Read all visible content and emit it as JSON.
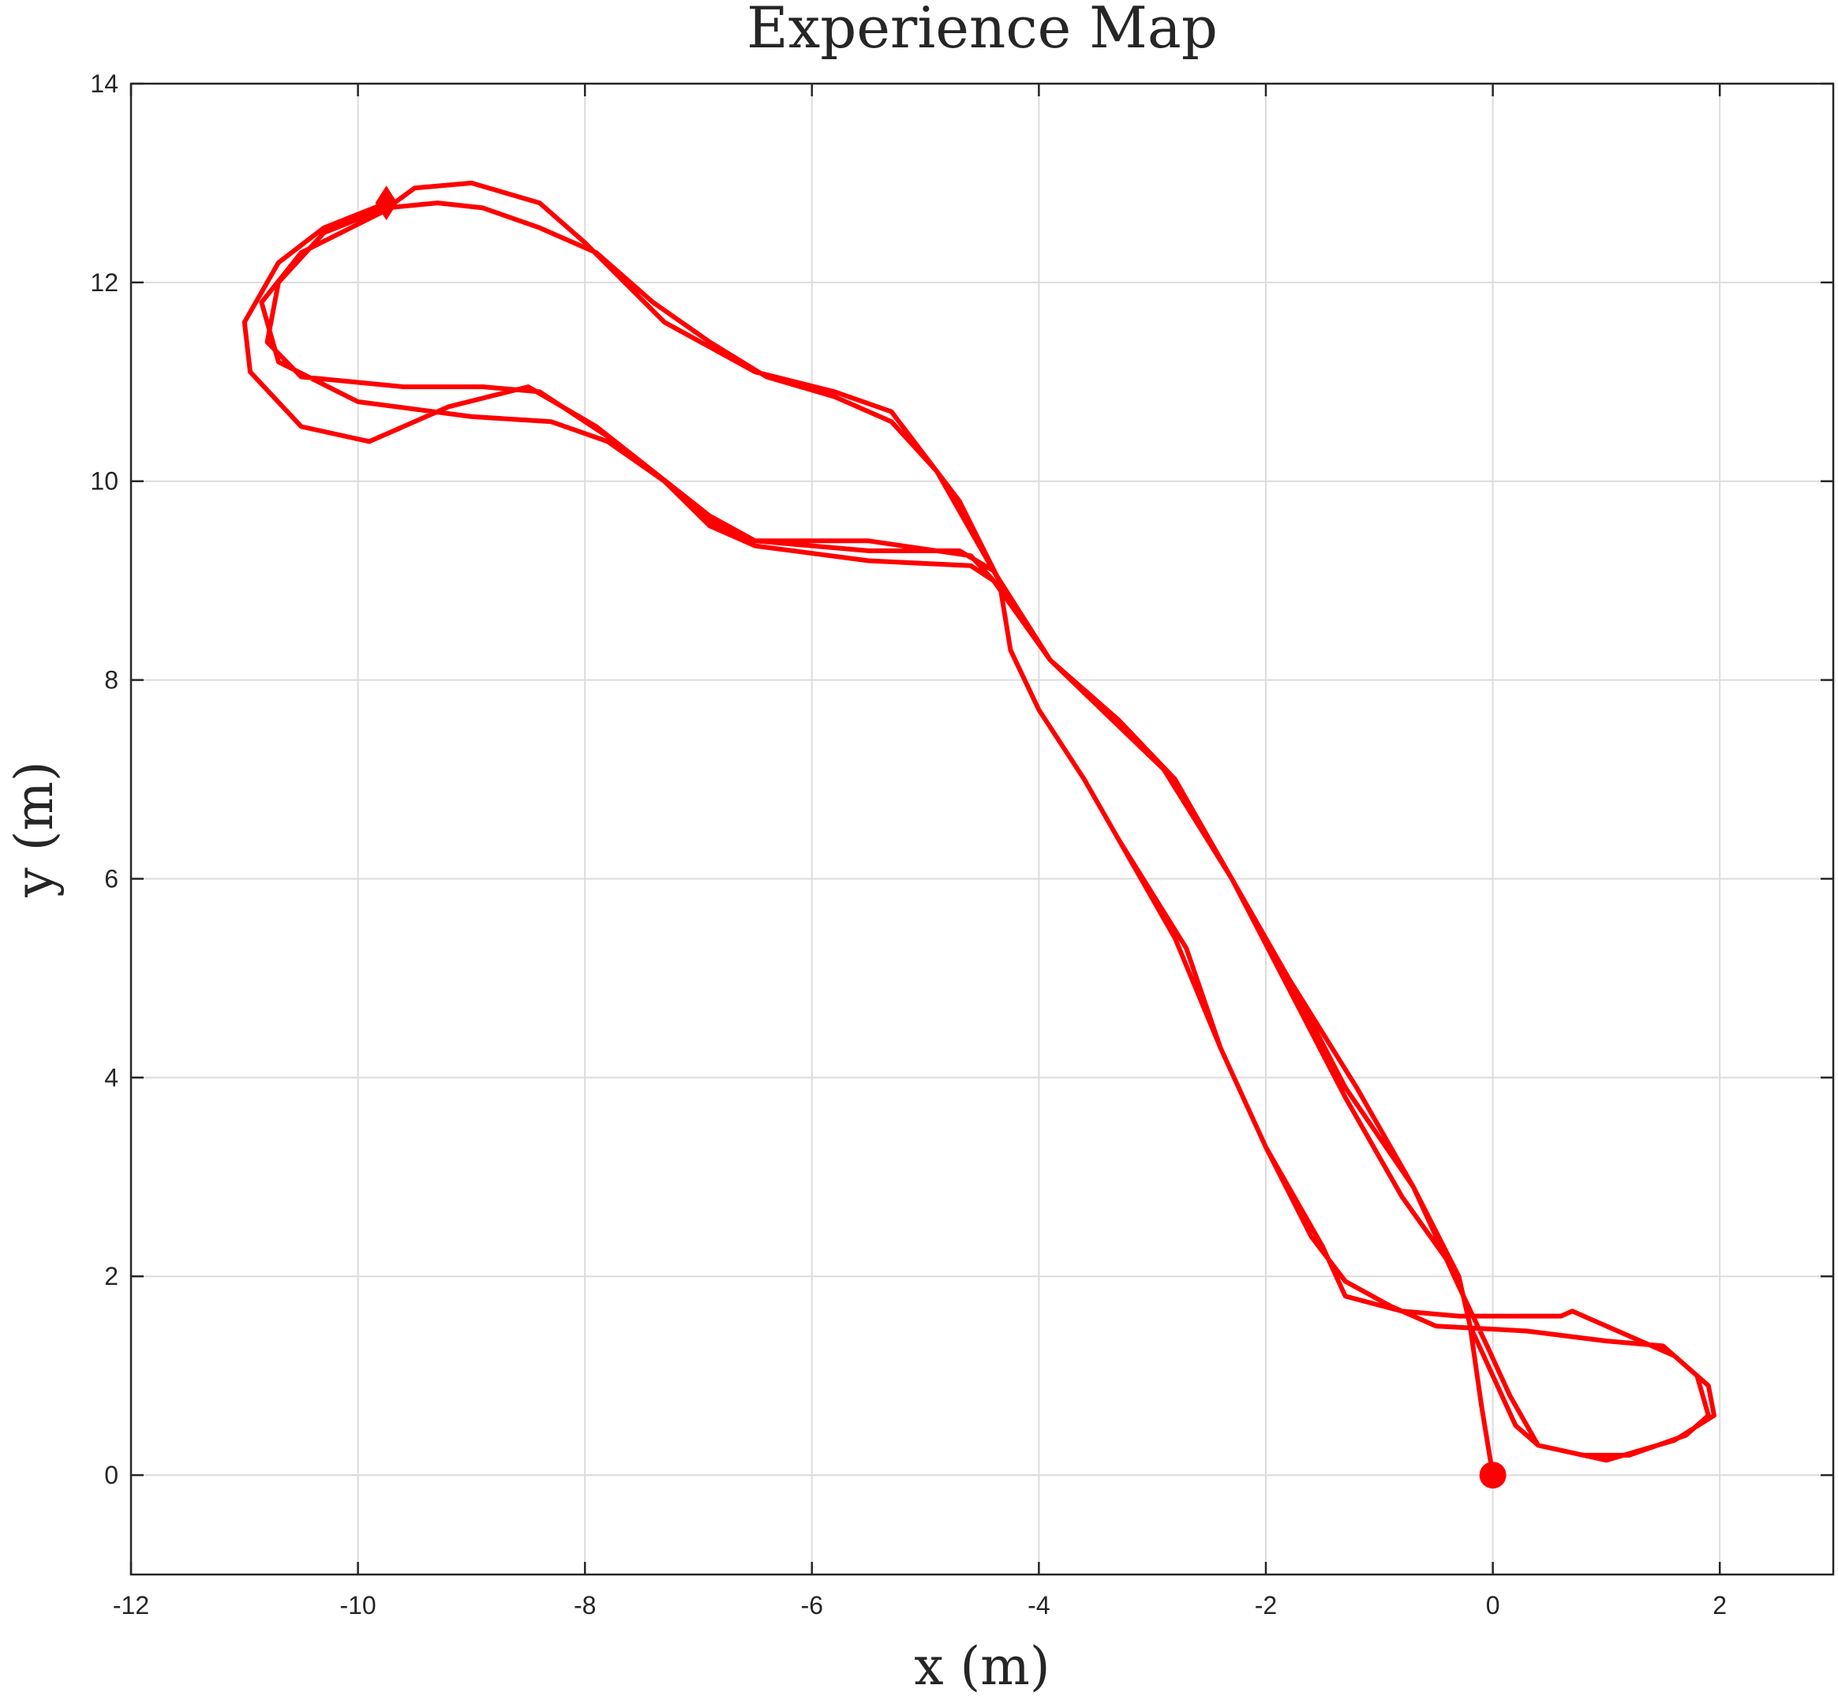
{
  "chart_data": {
    "type": "line",
    "title": "Experience Map",
    "xlabel": "x (m)",
    "ylabel": "y (m)",
    "xlim": [
      -12,
      3
    ],
    "ylim": [
      -1,
      14
    ],
    "xticks": [
      -12,
      -10,
      -8,
      -6,
      -4,
      -2,
      0,
      2
    ],
    "yticks": [
      0,
      2,
      4,
      6,
      8,
      10,
      12,
      14
    ],
    "grid": true,
    "colors": {
      "trajectory": "#ff0000",
      "axis": "#262626",
      "grid": "#dcdcdc"
    },
    "start_marker": {
      "shape": "circle",
      "x": 0,
      "y": 0
    },
    "end_marker": {
      "shape": "diamond",
      "x": -9.75,
      "y": 12.8
    },
    "series": [
      {
        "values_xy": [
          [
            0,
            0
          ],
          [
            -0.1,
            0.7
          ],
          [
            -0.2,
            1.5
          ],
          [
            -0.3,
            2.0
          ],
          [
            -0.7,
            2.9
          ],
          [
            -1.3,
            3.9
          ],
          [
            -1.8,
            5.0
          ],
          [
            -2.3,
            6.0
          ],
          [
            -2.9,
            7.1
          ],
          [
            -3.3,
            7.6
          ],
          [
            -3.9,
            8.2
          ],
          [
            -4.4,
            9.0
          ],
          [
            -4.6,
            9.25
          ],
          [
            -5.5,
            9.4
          ],
          [
            -6.5,
            9.4
          ],
          [
            -6.9,
            9.6
          ],
          [
            -7.3,
            10.0
          ],
          [
            -7.8,
            10.4
          ],
          [
            -8.3,
            10.6
          ],
          [
            -9.0,
            10.65
          ],
          [
            -10.0,
            10.8
          ],
          [
            -10.7,
            11.2
          ],
          [
            -10.85,
            11.8
          ],
          [
            -10.5,
            12.3
          ],
          [
            -9.8,
            12.7
          ],
          [
            -9.5,
            12.95
          ],
          [
            -9.0,
            13.0
          ],
          [
            -8.4,
            12.8
          ],
          [
            -8.0,
            12.4
          ],
          [
            -7.3,
            11.6
          ],
          [
            -6.5,
            11.1
          ],
          [
            -5.8,
            10.9
          ],
          [
            -5.3,
            10.7
          ],
          [
            -4.7,
            9.8
          ],
          [
            -4.35,
            9.0
          ],
          [
            -4.25,
            8.3
          ],
          [
            -4.0,
            7.7
          ],
          [
            -3.6,
            7.0
          ],
          [
            -3.3,
            6.4
          ],
          [
            -2.7,
            5.3
          ],
          [
            -2.4,
            4.3
          ],
          [
            -2.0,
            3.3
          ],
          [
            -1.5,
            2.3
          ],
          [
            -1.3,
            1.8
          ],
          [
            -0.8,
            1.65
          ],
          [
            -0.3,
            1.6
          ],
          [
            0.6,
            1.6
          ],
          [
            0.7,
            1.65
          ],
          [
            1.2,
            1.4
          ],
          [
            1.6,
            1.2
          ],
          [
            1.9,
            0.9
          ],
          [
            1.95,
            0.6
          ],
          [
            1.6,
            0.35
          ],
          [
            1.0,
            0.15
          ],
          [
            0.4,
            0.3
          ],
          [
            0.2,
            0.5
          ],
          [
            0,
            1.0
          ],
          [
            -0.2,
            1.5
          ],
          [
            -0.3,
            2.0
          ],
          [
            -0.8,
            2.8
          ],
          [
            -1.3,
            3.8
          ],
          [
            -1.8,
            4.9
          ],
          [
            -2.3,
            6.0
          ],
          [
            -2.8,
            7.0
          ],
          [
            -3.3,
            7.6
          ],
          [
            -3.9,
            8.2
          ],
          [
            -4.4,
            9.0
          ],
          [
            -4.6,
            9.15
          ],
          [
            -5.5,
            9.2
          ],
          [
            -6.5,
            9.35
          ],
          [
            -6.9,
            9.55
          ],
          [
            -7.3,
            10.0
          ],
          [
            -7.8,
            10.45
          ],
          [
            -8.4,
            10.9
          ],
          [
            -8.9,
            10.95
          ],
          [
            -9.6,
            10.95
          ],
          [
            -10.5,
            11.05
          ],
          [
            -10.8,
            11.4
          ],
          [
            -10.7,
            12.0
          ],
          [
            -10.3,
            12.5
          ],
          [
            -9.75,
            12.75
          ],
          [
            -9.3,
            12.8
          ],
          [
            -8.9,
            12.75
          ],
          [
            -8.4,
            12.55
          ],
          [
            -7.9,
            12.3
          ],
          [
            -7.4,
            11.8
          ],
          [
            -6.9,
            11.4
          ],
          [
            -6.4,
            11.05
          ],
          [
            -5.8,
            10.85
          ],
          [
            -5.3,
            10.6
          ],
          [
            -4.9,
            10.1
          ],
          [
            -4.55,
            9.4
          ],
          [
            -4.35,
            9.0
          ],
          [
            -4.25,
            8.3
          ],
          [
            -4.0,
            7.7
          ],
          [
            -3.6,
            7.0
          ],
          [
            -3.3,
            6.4
          ],
          [
            -2.8,
            5.4
          ],
          [
            -2.4,
            4.3
          ],
          [
            -2.0,
            3.3
          ],
          [
            -1.6,
            2.4
          ],
          [
            -1.3,
            1.95
          ],
          [
            -0.9,
            1.7
          ],
          [
            -0.5,
            1.5
          ],
          [
            0.3,
            1.45
          ],
          [
            1.0,
            1.35
          ],
          [
            1.5,
            1.3
          ],
          [
            1.8,
            1.0
          ],
          [
            1.9,
            0.6
          ],
          [
            1.7,
            0.4
          ],
          [
            1.2,
            0.2
          ],
          [
            0.8,
            0.2
          ],
          [
            0.4,
            0.3
          ],
          [
            0.15,
            0.8
          ],
          [
            -0.05,
            1.3
          ],
          [
            -0.3,
            1.9
          ],
          [
            -0.7,
            2.9
          ],
          [
            -1.2,
            3.9
          ],
          [
            -1.8,
            5.0
          ],
          [
            -2.3,
            6.0
          ],
          [
            -2.9,
            7.1
          ],
          [
            -3.9,
            8.2
          ],
          [
            -4.4,
            9.1
          ],
          [
            -4.7,
            9.3
          ],
          [
            -5.5,
            9.3
          ],
          [
            -6.5,
            9.4
          ],
          [
            -6.9,
            9.65
          ],
          [
            -7.4,
            10.1
          ],
          [
            -7.9,
            10.55
          ],
          [
            -8.5,
            10.95
          ],
          [
            -9.2,
            10.75
          ],
          [
            -9.9,
            10.4
          ],
          [
            -10.5,
            10.55
          ],
          [
            -10.95,
            11.1
          ],
          [
            -11.0,
            11.6
          ],
          [
            -10.7,
            12.2
          ],
          [
            -10.3,
            12.55
          ],
          [
            -9.75,
            12.8
          ]
        ]
      }
    ]
  }
}
